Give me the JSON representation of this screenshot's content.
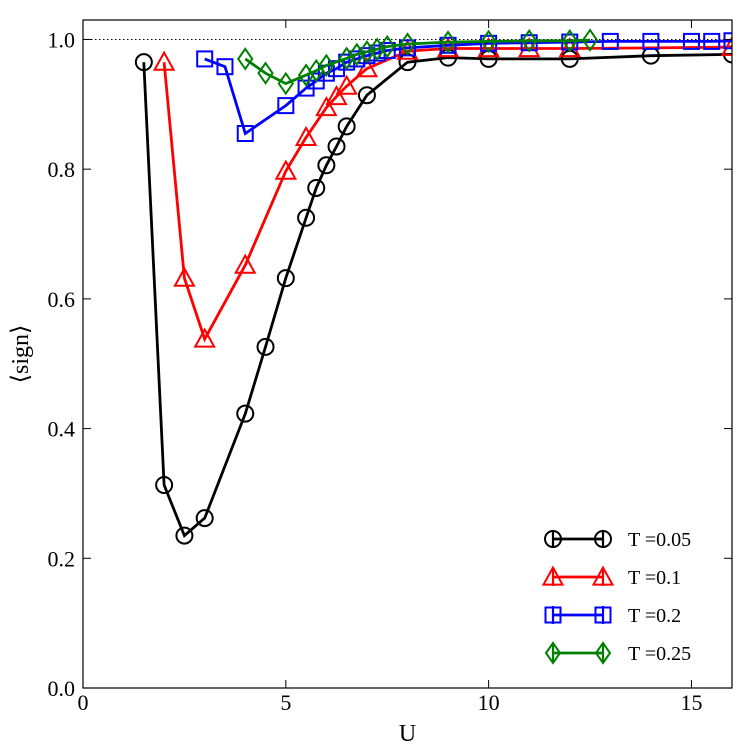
{
  "chart_data": {
    "type": "line",
    "title": "",
    "xlabel": "U",
    "ylabel": "⟨sign⟩",
    "xlim": [
      0,
      16
    ],
    "ylim": [
      0,
      1.03
    ],
    "xticks": [
      0,
      5,
      10,
      15
    ],
    "yticks": [
      0.0,
      0.2,
      0.4,
      0.6,
      0.8,
      1.0
    ],
    "xtick_labels": [
      "0",
      "5",
      "10",
      "15"
    ],
    "ytick_labels": [
      "0.0",
      "0.2",
      "0.4",
      "0.6",
      "0.8",
      "1.0"
    ],
    "reference_line": 1.0,
    "legend_position": "lower-right",
    "series": [
      {
        "name": "T =0.05",
        "color": "#000000",
        "marker": "circle",
        "x": [
          1.5,
          2.0,
          2.5,
          3.0,
          4.0,
          4.5,
          5.0,
          5.5,
          5.75,
          6.0,
          6.25,
          6.5,
          7.0,
          8.0,
          9.0,
          10.0,
          12.0,
          14.0,
          16.0
        ],
        "y": [
          0.965,
          0.313,
          0.235,
          0.262,
          0.423,
          0.526,
          0.632,
          0.725,
          0.771,
          0.806,
          0.835,
          0.866,
          0.914,
          0.965,
          0.972,
          0.97,
          0.97,
          0.975,
          0.977
        ]
      },
      {
        "name": "T =0.1",
        "color": "#ff0000",
        "marker": "triangle",
        "x": [
          2.0,
          2.5,
          3.0,
          4.0,
          5.0,
          5.5,
          6.0,
          6.25,
          6.5,
          7.0,
          8.0,
          9.0,
          10.0,
          11.0,
          12.0,
          16.0
        ],
        "y": [
          0.965,
          0.632,
          0.538,
          0.652,
          0.797,
          0.849,
          0.895,
          0.912,
          0.928,
          0.955,
          0.982,
          0.986,
          0.986,
          0.986,
          0.986,
          0.988
        ]
      },
      {
        "name": "T =0.2",
        "color": "#0000ff",
        "marker": "square",
        "x": [
          3.0,
          3.5,
          4.0,
          5.0,
          5.5,
          5.75,
          6.0,
          6.25,
          6.5,
          6.75,
          7.0,
          7.25,
          7.5,
          8.0,
          9.0,
          10.0,
          11.0,
          12.0,
          13.0,
          14.0,
          15.0,
          15.5,
          16.0
        ],
        "y": [
          0.97,
          0.958,
          0.855,
          0.898,
          0.925,
          0.936,
          0.948,
          0.955,
          0.965,
          0.97,
          0.975,
          0.979,
          0.983,
          0.987,
          0.991,
          0.994,
          0.995,
          0.996,
          0.997,
          0.997,
          0.997,
          0.997,
          0.998
        ]
      },
      {
        "name": "T =0.25",
        "color": "#008000",
        "marker": "diamond",
        "x": [
          4.0,
          4.5,
          5.0,
          5.5,
          5.75,
          6.0,
          6.5,
          6.75,
          7.0,
          7.25,
          7.5,
          8.0,
          9.0,
          10.0,
          11.0,
          12.0,
          12.5
        ],
        "y": [
          0.97,
          0.948,
          0.932,
          0.945,
          0.952,
          0.96,
          0.971,
          0.977,
          0.981,
          0.985,
          0.989,
          0.993,
          0.996,
          0.997,
          0.998,
          0.998,
          0.999
        ]
      }
    ]
  }
}
